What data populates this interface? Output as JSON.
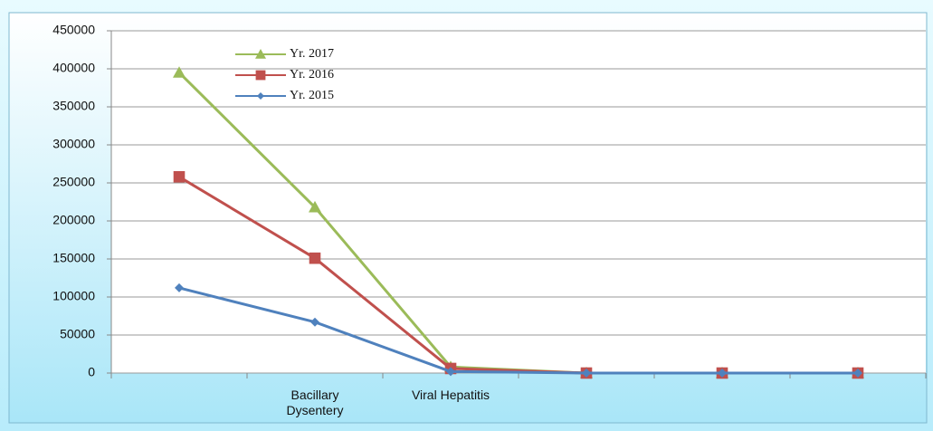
{
  "chart_data": {
    "type": "line",
    "categories": [
      null,
      "Bacillary Dysentery",
      "Viral Hepatitis",
      null,
      null,
      null
    ],
    "series": [
      {
        "name": "Yr. 2017",
        "color": "#9bbb59",
        "marker": "triangle",
        "values": [
          395000,
          218000,
          8000,
          0,
          0,
          0
        ]
      },
      {
        "name": "Yr. 2016",
        "color": "#c0504d",
        "marker": "square",
        "values": [
          258000,
          151000,
          6000,
          0,
          0,
          0
        ]
      },
      {
        "name": "Yr. 2015",
        "color": "#4f81bd",
        "marker": "diamond",
        "values": [
          112000,
          67000,
          2000,
          0,
          0,
          0
        ]
      }
    ],
    "ylim": [
      0,
      450000
    ],
    "yticks": [
      0,
      50000,
      100000,
      150000,
      200000,
      250000,
      300000,
      350000,
      400000,
      450000
    ],
    "grid": true,
    "legend": "top-left"
  }
}
